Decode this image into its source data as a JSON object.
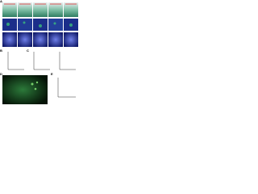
{
  "panels": {
    "labels": [
      "A",
      "B",
      "C",
      "D",
      "E"
    ]
  }
}
